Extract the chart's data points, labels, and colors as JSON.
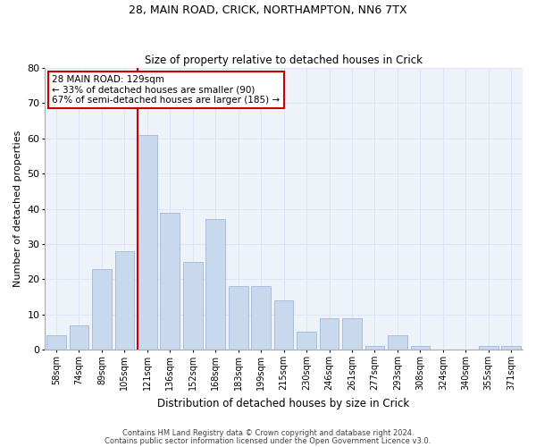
{
  "title1": "28, MAIN ROAD, CRICK, NORTHAMPTON, NN6 7TX",
  "title2": "Size of property relative to detached houses in Crick",
  "xlabel": "Distribution of detached houses by size in Crick",
  "ylabel": "Number of detached properties",
  "bar_labels": [
    "58sqm",
    "74sqm",
    "89sqm",
    "105sqm",
    "121sqm",
    "136sqm",
    "152sqm",
    "168sqm",
    "183sqm",
    "199sqm",
    "215sqm",
    "230sqm",
    "246sqm",
    "261sqm",
    "277sqm",
    "293sqm",
    "308sqm",
    "324sqm",
    "340sqm",
    "355sqm",
    "371sqm"
  ],
  "bar_values": [
    4,
    7,
    23,
    28,
    61,
    39,
    25,
    37,
    18,
    18,
    14,
    5,
    9,
    9,
    1,
    4,
    1,
    0,
    0,
    1,
    1
  ],
  "bar_color": "#c9d9ed",
  "bar_edge_color": "#a0b8d8",
  "vline_bin_index": 4,
  "vline_color": "#cc0000",
  "ylim": [
    0,
    80
  ],
  "yticks": [
    0,
    10,
    20,
    30,
    40,
    50,
    60,
    70,
    80
  ],
  "annotation_text": "28 MAIN ROAD: 129sqm\n← 33% of detached houses are smaller (90)\n67% of semi-detached houses are larger (185) →",
  "annotation_box_color": "#ffffff",
  "annotation_box_edge": "#cc0000",
  "footer1": "Contains HM Land Registry data © Crown copyright and database right 2024.",
  "footer2": "Contains public sector information licensed under the Open Government Licence v3.0.",
  "grid_color": "#dce6f5",
  "background_color": "#eef2f9"
}
